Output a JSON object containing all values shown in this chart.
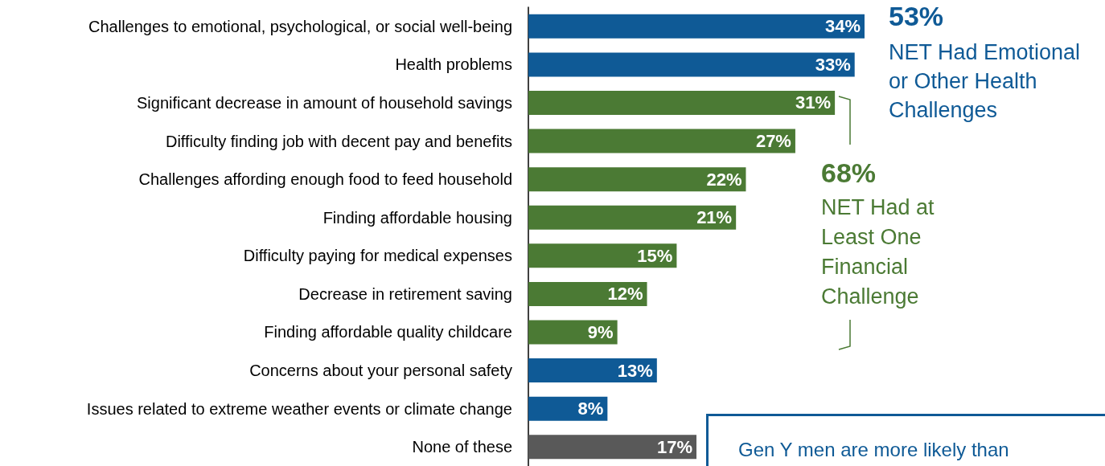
{
  "chart_data": {
    "type": "bar",
    "orientation": "horizontal",
    "categories": [
      "Challenges to emotional, psychological, or social well-being",
      "Health problems",
      "Significant decrease in amount of household savings",
      "Difficulty finding job with decent pay and benefits",
      "Challenges affording enough food to feed household",
      "Finding affordable housing",
      "Difficulty paying for medical expenses",
      "Decrease in retirement saving",
      "Finding affordable quality childcare",
      "Concerns about your personal safety",
      "Issues related to extreme weather events or climate change",
      "None of these"
    ],
    "values": [
      34,
      33,
      31,
      27,
      22,
      21,
      15,
      12,
      9,
      13,
      8,
      17
    ],
    "colors": [
      "#0f5a96",
      "#0f5a96",
      "#4b7a34",
      "#4b7a34",
      "#4b7a34",
      "#4b7a34",
      "#4b7a34",
      "#4b7a34",
      "#4b7a34",
      "#0f5a96",
      "#0f5a96",
      "#595959"
    ],
    "value_labels": [
      "34%",
      "33%",
      "31%",
      "27%",
      "22%",
      "21%",
      "15%",
      "12%",
      "9%",
      "13%",
      "8%",
      "17%"
    ],
    "annotations": [
      "53%",
      "NET Had Emotional or Other Health Challenges",
      "68%",
      "NET Had at Least One Financial Challenge",
      "Gen Y men are more likely than"
    ]
  }
}
